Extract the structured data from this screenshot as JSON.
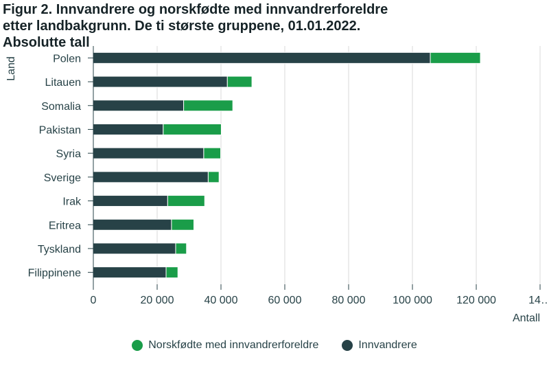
{
  "chart_data": {
    "type": "bar",
    "orientation": "horizontal",
    "stacked": true,
    "title": "Figur 2. Innvandrere og norskfødte med innvandrerforeldre etter landbakgrunn. De ti største gruppene, 01.01.2022. Absolutte tall",
    "xlabel": "Antall",
    "ylabel": "Land",
    "categories": [
      "Polen",
      "Litauen",
      "Somalia",
      "Pakistan",
      "Syria",
      "Sverige",
      "Irak",
      "Eritrea",
      "Tyskland",
      "Filippinene"
    ],
    "series": [
      {
        "name": "Innvandrere",
        "color": "#274247",
        "values": [
          105600,
          42000,
          28300,
          21900,
          34600,
          36000,
          23300,
          24500,
          25800,
          22800
        ]
      },
      {
        "name": "Norskfødte med innvandrerforeldre",
        "color": "#1a9d49",
        "values": [
          15700,
          7700,
          15400,
          18200,
          5300,
          3400,
          11600,
          7000,
          3400,
          3700
        ]
      }
    ],
    "xlim": [
      0,
      140000
    ],
    "x_ticks": [
      "0",
      "20 000",
      "40 000",
      "60 000",
      "80 000",
      "100 000",
      "120 000",
      "14…"
    ],
    "grid": true,
    "legend_position": "bottom"
  }
}
